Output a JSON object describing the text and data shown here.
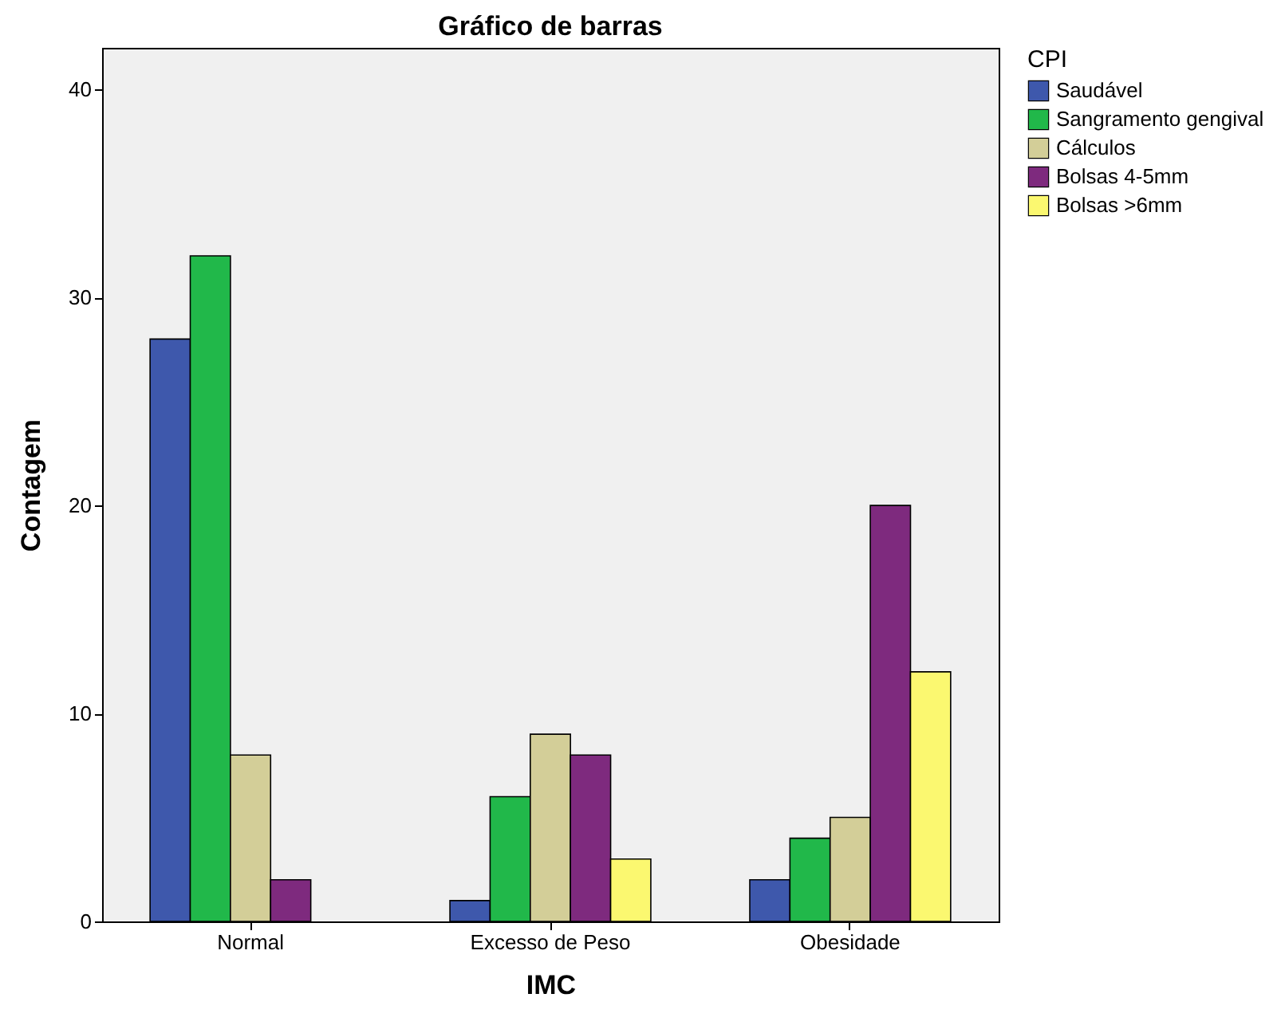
{
  "chart_data": {
    "type": "bar",
    "title": "Gráfico de barras",
    "xlabel": "IMC",
    "ylabel": "Contagem",
    "legend_title": "CPI",
    "categories": [
      "Normal",
      "Excesso de Peso",
      "Obesidade"
    ],
    "series": [
      {
        "name": "Saudável",
        "color": "#3e58ac",
        "values": [
          28,
          1,
          2
        ]
      },
      {
        "name": "Sangramento gengival",
        "color": "#21b84a",
        "values": [
          32,
          6,
          4
        ]
      },
      {
        "name": "Cálculos",
        "color": "#d3ce98",
        "values": [
          8,
          9,
          5
        ]
      },
      {
        "name": "Bolsas 4-5mm",
        "color": "#7e2a7e",
        "values": [
          2,
          8,
          20
        ]
      },
      {
        "name": "Bolsas >6mm",
        "color": "#fbf870",
        "values": [
          null,
          3,
          12
        ]
      }
    ],
    "ylim": [
      0,
      42
    ],
    "yticks": [
      0,
      10,
      20,
      30,
      40
    ],
    "grid": false,
    "legend": "top right"
  }
}
